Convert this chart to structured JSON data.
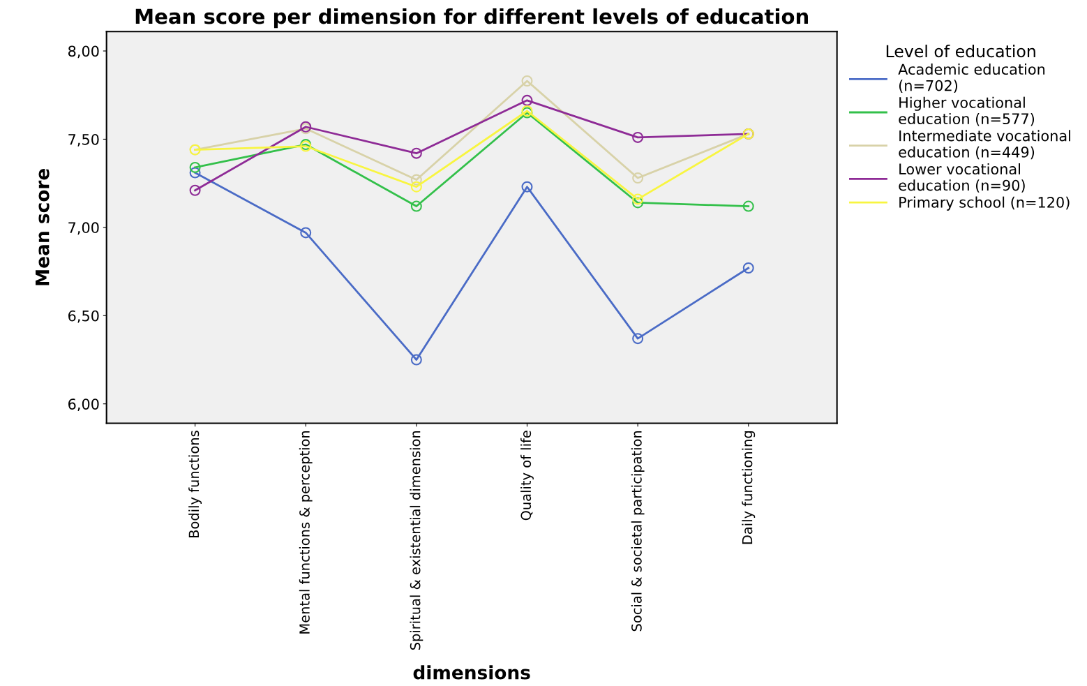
{
  "chart_data": {
    "type": "line",
    "title": "Mean score per dimension for different levels of education",
    "xlabel": "dimensions",
    "ylabel": "Mean score",
    "legend_title": "Level of education",
    "categories": [
      "Bodily functions",
      "Mental functions & perception",
      "Spiritual & existential dimension",
      "Quality of life",
      "Social & societal participation",
      "Daily functioning"
    ],
    "series": [
      {
        "name": "Academic education\n(n=702)",
        "color": "#4a6bc6",
        "values": [
          7.31,
          6.97,
          6.25,
          7.23,
          6.37,
          6.77
        ]
      },
      {
        "name": "Higher vocational\neducation (n=577)",
        "color": "#33c04a",
        "values": [
          7.34,
          7.47,
          7.12,
          7.65,
          7.14,
          7.12
        ]
      },
      {
        "name": "Intermediate vocational\neducation (n=449)",
        "color": "#d8d2a8",
        "values": [
          7.44,
          7.56,
          7.27,
          7.83,
          7.28,
          7.53
        ]
      },
      {
        "name": "Lower vocational\neducation (n=90)",
        "color": "#8e2b96",
        "values": [
          7.21,
          7.57,
          7.42,
          7.72,
          7.51,
          7.53
        ]
      },
      {
        "name": "Primary school (n=120)",
        "color": "#f8f540",
        "values": [
          7.44,
          7.46,
          7.23,
          7.66,
          7.16,
          7.53
        ]
      }
    ],
    "ylim": [
      5.89,
      8.11
    ],
    "yticks": [
      {
        "value": 6,
        "label": "6,00"
      },
      {
        "value": 6.5,
        "label": "6,50"
      },
      {
        "value": 7,
        "label": "7,00"
      },
      {
        "value": 7.5,
        "label": "7,50"
      },
      {
        "value": 8,
        "label": "8,00"
      }
    ],
    "grid": false,
    "legend": "right",
    "marker": "circle",
    "line_style": "solid"
  }
}
